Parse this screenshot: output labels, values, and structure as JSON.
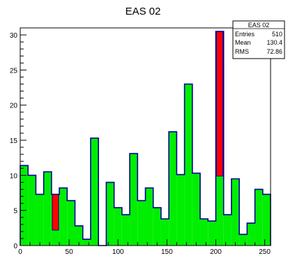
{
  "chart_data": {
    "type": "bar",
    "title": "EAS 02",
    "x_range": [
      0,
      256
    ],
    "ylim": [
      0,
      31
    ],
    "x_ticks": [
      0,
      50,
      100,
      150,
      200,
      250
    ],
    "y_ticks": [
      0,
      5,
      10,
      15,
      20,
      25,
      30
    ],
    "bin_width": 8,
    "bins": [
      {
        "x0": 0,
        "value": 11.4,
        "highlight": null
      },
      {
        "x0": 8,
        "value": 10.0,
        "highlight": null
      },
      {
        "x0": 16,
        "value": 7.3,
        "highlight": null
      },
      {
        "x0": 24,
        "value": 10.5,
        "highlight": null
      },
      {
        "x0": 32,
        "value": 7.3,
        "highlight": [
          2.2,
          7.3
        ]
      },
      {
        "x0": 40,
        "value": 8.2,
        "highlight": null
      },
      {
        "x0": 48,
        "value": 6.4,
        "highlight": null
      },
      {
        "x0": 56,
        "value": 2.8,
        "highlight": null
      },
      {
        "x0": 64,
        "value": 0.9,
        "highlight": null
      },
      {
        "x0": 72,
        "value": 15.3,
        "highlight": null
      },
      {
        "x0": 80,
        "value": 0.0,
        "highlight": null
      },
      {
        "x0": 88,
        "value": 9.0,
        "highlight": null
      },
      {
        "x0": 96,
        "value": 5.4,
        "highlight": null
      },
      {
        "x0": 104,
        "value": 4.4,
        "highlight": null
      },
      {
        "x0": 112,
        "value": 13.1,
        "highlight": null
      },
      {
        "x0": 120,
        "value": 6.4,
        "highlight": null
      },
      {
        "x0": 128,
        "value": 8.2,
        "highlight": null
      },
      {
        "x0": 136,
        "value": 5.4,
        "highlight": null
      },
      {
        "x0": 144,
        "value": 3.8,
        "highlight": null
      },
      {
        "x0": 152,
        "value": 16.2,
        "highlight": null
      },
      {
        "x0": 160,
        "value": 10.1,
        "highlight": null
      },
      {
        "x0": 168,
        "value": 23.0,
        "highlight": null
      },
      {
        "x0": 176,
        "value": 10.3,
        "highlight": null
      },
      {
        "x0": 184,
        "value": 3.8,
        "highlight": null
      },
      {
        "x0": 192,
        "value": 3.5,
        "highlight": null
      },
      {
        "x0": 200,
        "value": 30.5,
        "highlight": [
          9.9,
          30.5
        ]
      },
      {
        "x0": 208,
        "value": 4.4,
        "highlight": null
      },
      {
        "x0": 216,
        "value": 9.5,
        "highlight": null
      },
      {
        "x0": 224,
        "value": 1.6,
        "highlight": null
      },
      {
        "x0": 232,
        "value": 3.2,
        "highlight": null
      },
      {
        "x0": 240,
        "value": 8.0,
        "highlight": null
      },
      {
        "x0": 248,
        "value": 7.3,
        "highlight": null
      }
    ],
    "stats_box": {
      "title": "EAS 02",
      "rows": [
        {
          "label": "Entries",
          "value": "510"
        },
        {
          "label": "Mean",
          "value": "130.4"
        },
        {
          "label": "RMS",
          "value": "72.86"
        }
      ]
    },
    "colors": {
      "fill": "#00ee00",
      "outline": "#00009a",
      "highlight": "#ff0000",
      "frame": "#000000"
    },
    "grid": false
  }
}
